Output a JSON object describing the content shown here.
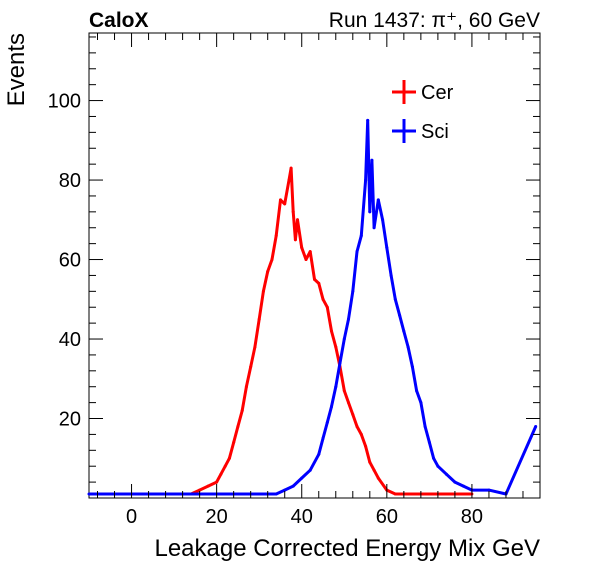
{
  "header": {
    "left_label": "CaloX",
    "right_label": "Run 1437: π⁺, 60 GeV"
  },
  "chart_data": {
    "type": "histogram",
    "xlabel": "Leakage Corrected Energy Mix GeV",
    "ylabel": "Events",
    "xlim": [
      -10,
      96
    ],
    "ylim": [
      0,
      117
    ],
    "x_ticks": [
      0,
      20,
      40,
      60,
      80
    ],
    "y_ticks": [
      20,
      40,
      60,
      80,
      100
    ],
    "x_tick_labels": [
      "0",
      "20",
      "40",
      "60",
      "80"
    ],
    "y_tick_labels": [
      "20",
      "40",
      "60",
      "80",
      "100"
    ],
    "legend_position": "top-right",
    "series": [
      {
        "name": "Cer",
        "color": "#ff0000",
        "x": [
          -8,
          -2,
          6,
          10,
          14,
          16,
          18,
          20,
          21,
          22,
          23,
          24,
          25,
          26,
          27,
          28,
          29,
          30,
          31,
          32,
          33,
          34,
          35,
          36,
          37,
          37.5,
          38,
          38.5,
          39,
          40,
          41,
          42,
          43,
          44,
          45,
          46,
          47,
          48,
          49,
          50,
          51,
          52,
          53,
          54,
          55,
          56,
          57,
          58,
          60,
          62,
          64,
          66,
          70,
          80
        ],
        "y": [
          1,
          1,
          1,
          1,
          1,
          2,
          3,
          4,
          6,
          8,
          10,
          14,
          18,
          22,
          28,
          33,
          38,
          45,
          52,
          57,
          60,
          66,
          75,
          74,
          80,
          83,
          72,
          65,
          70,
          63,
          60,
          62,
          55,
          54,
          50,
          48,
          42,
          38,
          33,
          27,
          24,
          21,
          18,
          16,
          13,
          9,
          7,
          5,
          2,
          1,
          1,
          1,
          1,
          1
        ]
      },
      {
        "name": "Sci",
        "color": "#0000ff",
        "x": [
          -10,
          0,
          4,
          10,
          20,
          26,
          30,
          34,
          36,
          38,
          40,
          42,
          44,
          45,
          46,
          47,
          48,
          49,
          50,
          51,
          52,
          53,
          54,
          55,
          55.5,
          56,
          56.5,
          57,
          58,
          59,
          60,
          61,
          62,
          63,
          64,
          65,
          66,
          67,
          68,
          69,
          70,
          71,
          72,
          74,
          76,
          78,
          80,
          84,
          88,
          95
        ],
        "y": [
          1,
          1,
          1,
          1,
          1,
          1,
          1,
          1,
          2,
          3,
          5,
          7,
          11,
          15,
          19,
          23,
          28,
          34,
          40,
          45,
          52,
          62,
          66,
          80,
          95,
          72,
          85,
          68,
          75,
          70,
          63,
          56,
          50,
          46,
          42,
          38,
          33,
          27,
          24,
          18,
          14,
          10,
          8,
          6,
          4,
          3,
          2,
          2,
          1,
          18
        ]
      }
    ]
  }
}
